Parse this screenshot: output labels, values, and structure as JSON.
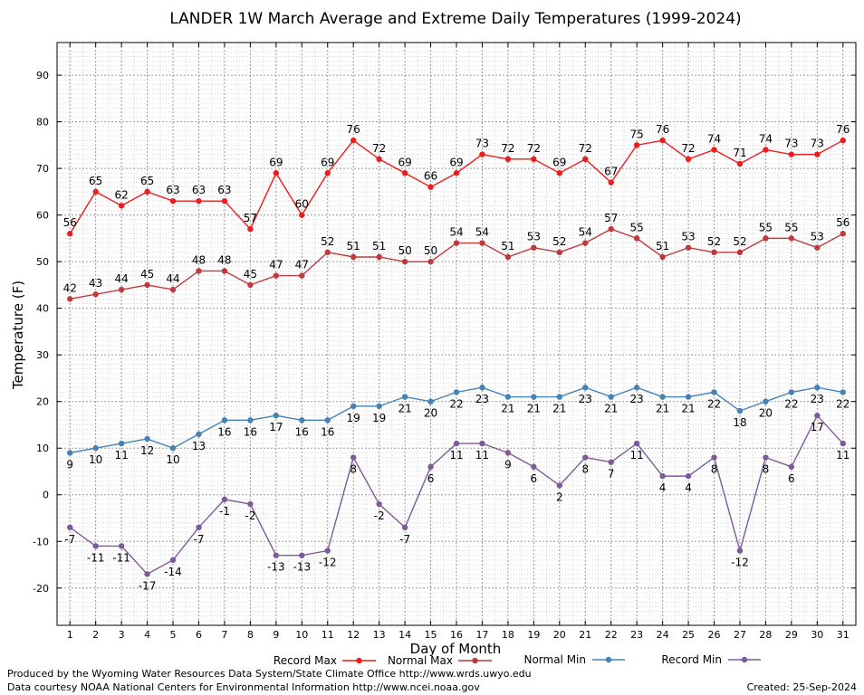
{
  "chart_data": {
    "type": "line",
    "title": "LANDER 1W March Average and Extreme Daily Temperatures (1999-2024)",
    "xlabel": "Day of Month",
    "ylabel": "Temperature (F)",
    "ylim": [
      -28,
      97
    ],
    "xlim": [
      0.5,
      31.5
    ],
    "yticks": [
      -20,
      -10,
      0,
      10,
      20,
      30,
      40,
      50,
      60,
      70,
      80,
      90
    ],
    "x": [
      1,
      2,
      3,
      4,
      5,
      6,
      7,
      8,
      9,
      10,
      11,
      12,
      13,
      14,
      15,
      16,
      17,
      18,
      19,
      20,
      21,
      22,
      23,
      24,
      25,
      26,
      27,
      28,
      29,
      30,
      31
    ],
    "grid": true,
    "legend_placement": "bottom",
    "series": [
      {
        "name": "Record Max",
        "color": "#ee1c1c",
        "label_pos": "above",
        "values": [
          56,
          65,
          62,
          65,
          63,
          63,
          63,
          57,
          69,
          60,
          69,
          76,
          72,
          69,
          66,
          69,
          73,
          72,
          72,
          69,
          72,
          67,
          75,
          76,
          72,
          74,
          71,
          74,
          73,
          73,
          76
        ]
      },
      {
        "name": "Normal Max",
        "color": "#c0393b",
        "label_pos": "above",
        "values": [
          42,
          43,
          44,
          45,
          44,
          48,
          48,
          45,
          47,
          47,
          52,
          51,
          51,
          50,
          50,
          54,
          54,
          51,
          53,
          52,
          54,
          57,
          55,
          51,
          53,
          52,
          52,
          55,
          55,
          53,
          56
        ]
      },
      {
        "name": "Normal Min",
        "color": "#4682b4",
        "label_pos": "below",
        "values": [
          9,
          10,
          11,
          12,
          10,
          13,
          16,
          16,
          17,
          16,
          16,
          19,
          19,
          21,
          20,
          22,
          23,
          21,
          21,
          21,
          23,
          21,
          23,
          21,
          21,
          22,
          18,
          20,
          22,
          23,
          22
        ]
      },
      {
        "name": "Record Min",
        "color": "#7e5a9b",
        "label_pos": "below",
        "values": [
          -7,
          -11,
          -11,
          -17,
          -14,
          -7,
          -1,
          -2,
          -13,
          -13,
          -12,
          8,
          -2,
          -7,
          6,
          11,
          11,
          9,
          6,
          2,
          8,
          7,
          11,
          4,
          4,
          8,
          -12,
          8,
          6,
          17,
          11
        ]
      }
    ]
  },
  "footer": {
    "produced_by": "Produced by the Wyoming Water Resources Data System/State Climate Office http://www.wrds.uwyo.edu",
    "courtesy": "Data courtesy NOAA National Centers for Environmental Information http://www.ncei.noaa.gov",
    "created": "Created:  25-Sep-2024"
  }
}
